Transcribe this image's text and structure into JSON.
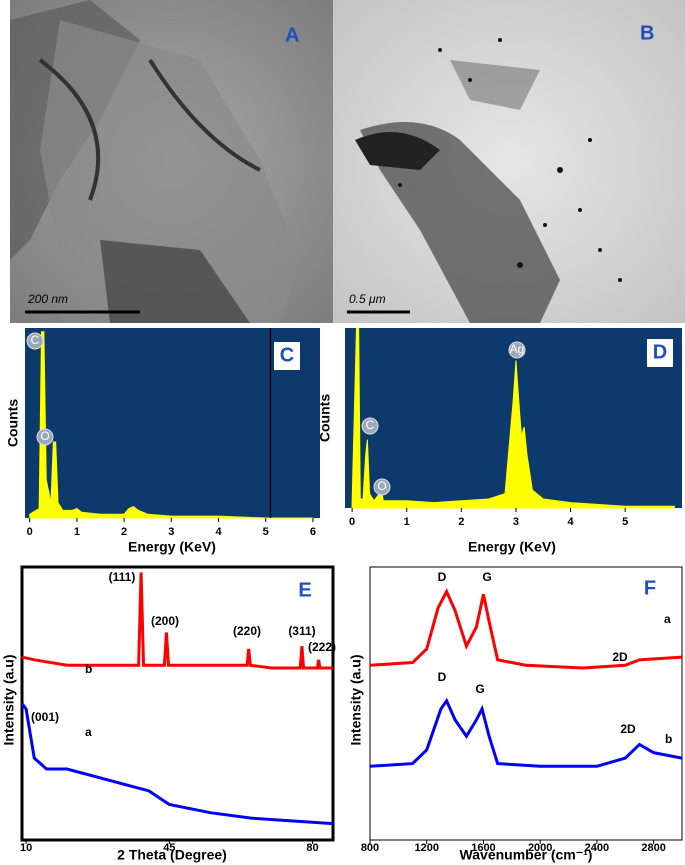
{
  "images": [
    {
      "label": "A",
      "scale_bar": "200 nm"
    },
    {
      "label": "B",
      "scale_bar": "0.5 μm"
    }
  ],
  "chart_data": [
    {
      "type": "area",
      "panel_label": "C",
      "xlabel": "Energy (KeV)",
      "ylabel": "Counts",
      "xlim": [
        -0.1,
        6.15
      ],
      "xticks": [
        0,
        1,
        2,
        3,
        4,
        5,
        6
      ],
      "ylim": [
        0,
        100
      ],
      "cursor": 5.1,
      "color": "#ffff00",
      "background": "#0d3a6c",
      "x": [
        0,
        0.2,
        0.25,
        0.3,
        0.35,
        0.45,
        0.5,
        0.55,
        0.6,
        0.7,
        0.9,
        1.0,
        1.1,
        1.5,
        2.0,
        2.1,
        2.2,
        2.3,
        2.5,
        3,
        4,
        5,
        6
      ],
      "values": [
        2,
        5,
        98,
        98,
        20,
        8,
        40,
        40,
        8,
        4,
        4,
        5,
        3,
        2,
        2,
        5,
        6,
        4,
        2,
        1,
        1,
        0,
        0
      ],
      "annotations": [
        "C",
        "O"
      ]
    },
    {
      "type": "area",
      "panel_label": "D",
      "xlabel": "Energy (KeV)",
      "ylabel": "Counts",
      "xlim": [
        -0.13,
        6.04
      ],
      "xticks": [
        0,
        1,
        2,
        3,
        4,
        5
      ],
      "ylim": [
        0,
        100
      ],
      "color": "#ffff00",
      "background": "#0d3a6c",
      "x": [
        0,
        0.08,
        0.1,
        0.12,
        0.15,
        0.2,
        0.25,
        0.28,
        0.32,
        0.4,
        0.5,
        0.53,
        0.57,
        0.7,
        1,
        1.5,
        2,
        2.5,
        2.8,
        2.95,
        3.0,
        3.05,
        3.1,
        3.15,
        3.2,
        3.3,
        3.5,
        4,
        5,
        5.9
      ],
      "values": [
        3,
        100,
        100,
        100,
        5,
        5,
        30,
        38,
        8,
        4,
        8,
        12,
        4,
        4,
        4,
        3,
        4,
        5,
        8,
        60,
        82,
        60,
        40,
        45,
        30,
        10,
        5,
        3,
        1,
        1
      ],
      "annotations": [
        "C",
        "O",
        "Ag"
      ]
    },
    {
      "type": "line",
      "panel_label": "E",
      "xlabel": "2 Theta (Degree)",
      "ylabel": "Intensity (a.u)",
      "xlim": [
        9,
        85
      ],
      "xticks": [
        10,
        45,
        80
      ],
      "ylim": [
        0,
        100
      ],
      "series": [
        {
          "name": "b",
          "color": "#ff0000",
          "x": [
            9,
            12,
            20,
            30,
            37.5,
            38.1,
            38.7,
            43.8,
            44.3,
            44.8,
            55,
            64,
            64.4,
            64.8,
            70,
            77,
            77.4,
            77.8,
            81.2,
            81.5,
            81.8,
            85
          ],
          "values": [
            67,
            66,
            64,
            64,
            64,
            98,
            64,
            64,
            76,
            64,
            64,
            64,
            70,
            64,
            63,
            63,
            71,
            63,
            63,
            66,
            63,
            63
          ]
        },
        {
          "name": "a",
          "color": "#0000ff",
          "x": [
            9,
            10,
            12,
            15,
            20,
            30,
            40,
            45,
            55,
            65,
            85
          ],
          "values": [
            50,
            48,
            30,
            26,
            26,
            22,
            18,
            13,
            10,
            8,
            6
          ]
        }
      ],
      "annotations": [
        "(111)",
        "(200)",
        "(220)",
        "(311)",
        "(222)",
        "(001)"
      ]
    },
    {
      "type": "line",
      "panel_label": "F",
      "xlabel": "Wavenumber (cm⁻¹)",
      "ylabel": "Intensity (a.u)",
      "xlim": [
        800,
        3000
      ],
      "xticks": [
        800,
        1200,
        1600,
        2000,
        2400,
        2800
      ],
      "ylim": [
        0,
        100
      ],
      "series": [
        {
          "name": "a",
          "color": "#ff0000",
          "x": [
            800,
            1100,
            1200,
            1280,
            1340,
            1400,
            1480,
            1550,
            1600,
            1640,
            1700,
            1900,
            2300,
            2600,
            2700,
            3000
          ],
          "values": [
            64,
            65,
            70,
            85,
            91,
            84,
            71,
            78,
            90,
            80,
            66,
            64,
            63,
            64,
            66,
            67
          ]
        },
        {
          "name": "b",
          "color": "#0000ff",
          "x": [
            800,
            1100,
            1200,
            1300,
            1340,
            1400,
            1480,
            1550,
            1590,
            1640,
            1700,
            2000,
            2400,
            2600,
            2700,
            2800,
            3000
          ],
          "values": [
            27,
            28,
            33,
            48,
            51,
            44,
            38,
            44,
            48,
            38,
            28,
            27,
            27,
            30,
            35,
            32,
            30
          ]
        }
      ],
      "annotations": [
        "D",
        "G",
        "2D",
        "D",
        "G",
        "2D"
      ]
    }
  ]
}
